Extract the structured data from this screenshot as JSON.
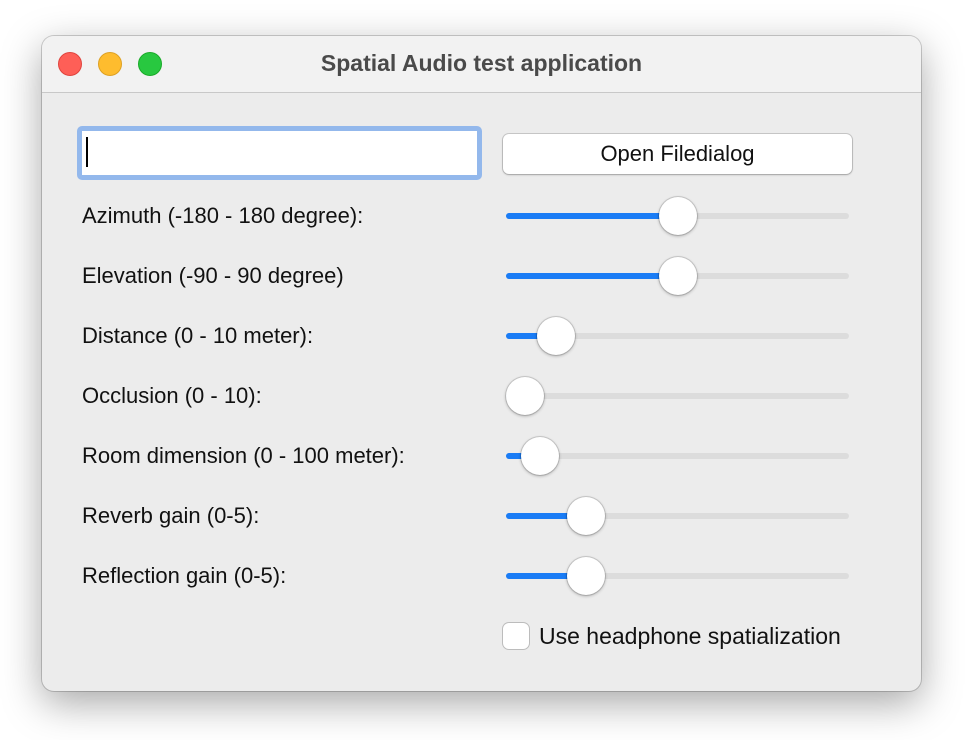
{
  "window": {
    "title": "Spatial Audio test application",
    "controls": {
      "close_color": "#fe5f57",
      "minimize_color": "#febc2e",
      "zoom_color": "#28c840"
    }
  },
  "file_input": {
    "value": ""
  },
  "open_button": {
    "label": "Open Filedialog"
  },
  "sliders": [
    {
      "label": "Azimuth (-180 - 180 degree):",
      "min": -180,
      "max": 180,
      "value": 0
    },
    {
      "label": "Elevation (-90 - 90 degree)",
      "min": -90,
      "max": 90,
      "value": 0
    },
    {
      "label": "Distance (0 - 10 meter):",
      "min": 0,
      "max": 10,
      "value": 1
    },
    {
      "label": "Occlusion (0 - 10):",
      "min": 0,
      "max": 10,
      "value": 0
    },
    {
      "label": "Room dimension (0 - 100 meter):",
      "min": 0,
      "max": 100,
      "value": 5
    },
    {
      "label": "Reverb gain (0-5):",
      "min": 0,
      "max": 5,
      "value": 1
    },
    {
      "label": "Reflection gain (0-5):",
      "min": 0,
      "max": 5,
      "value": 1
    }
  ],
  "headphone": {
    "label": "Use headphone spatialization",
    "checked": false
  },
  "accent_color": "#1a7cf5"
}
